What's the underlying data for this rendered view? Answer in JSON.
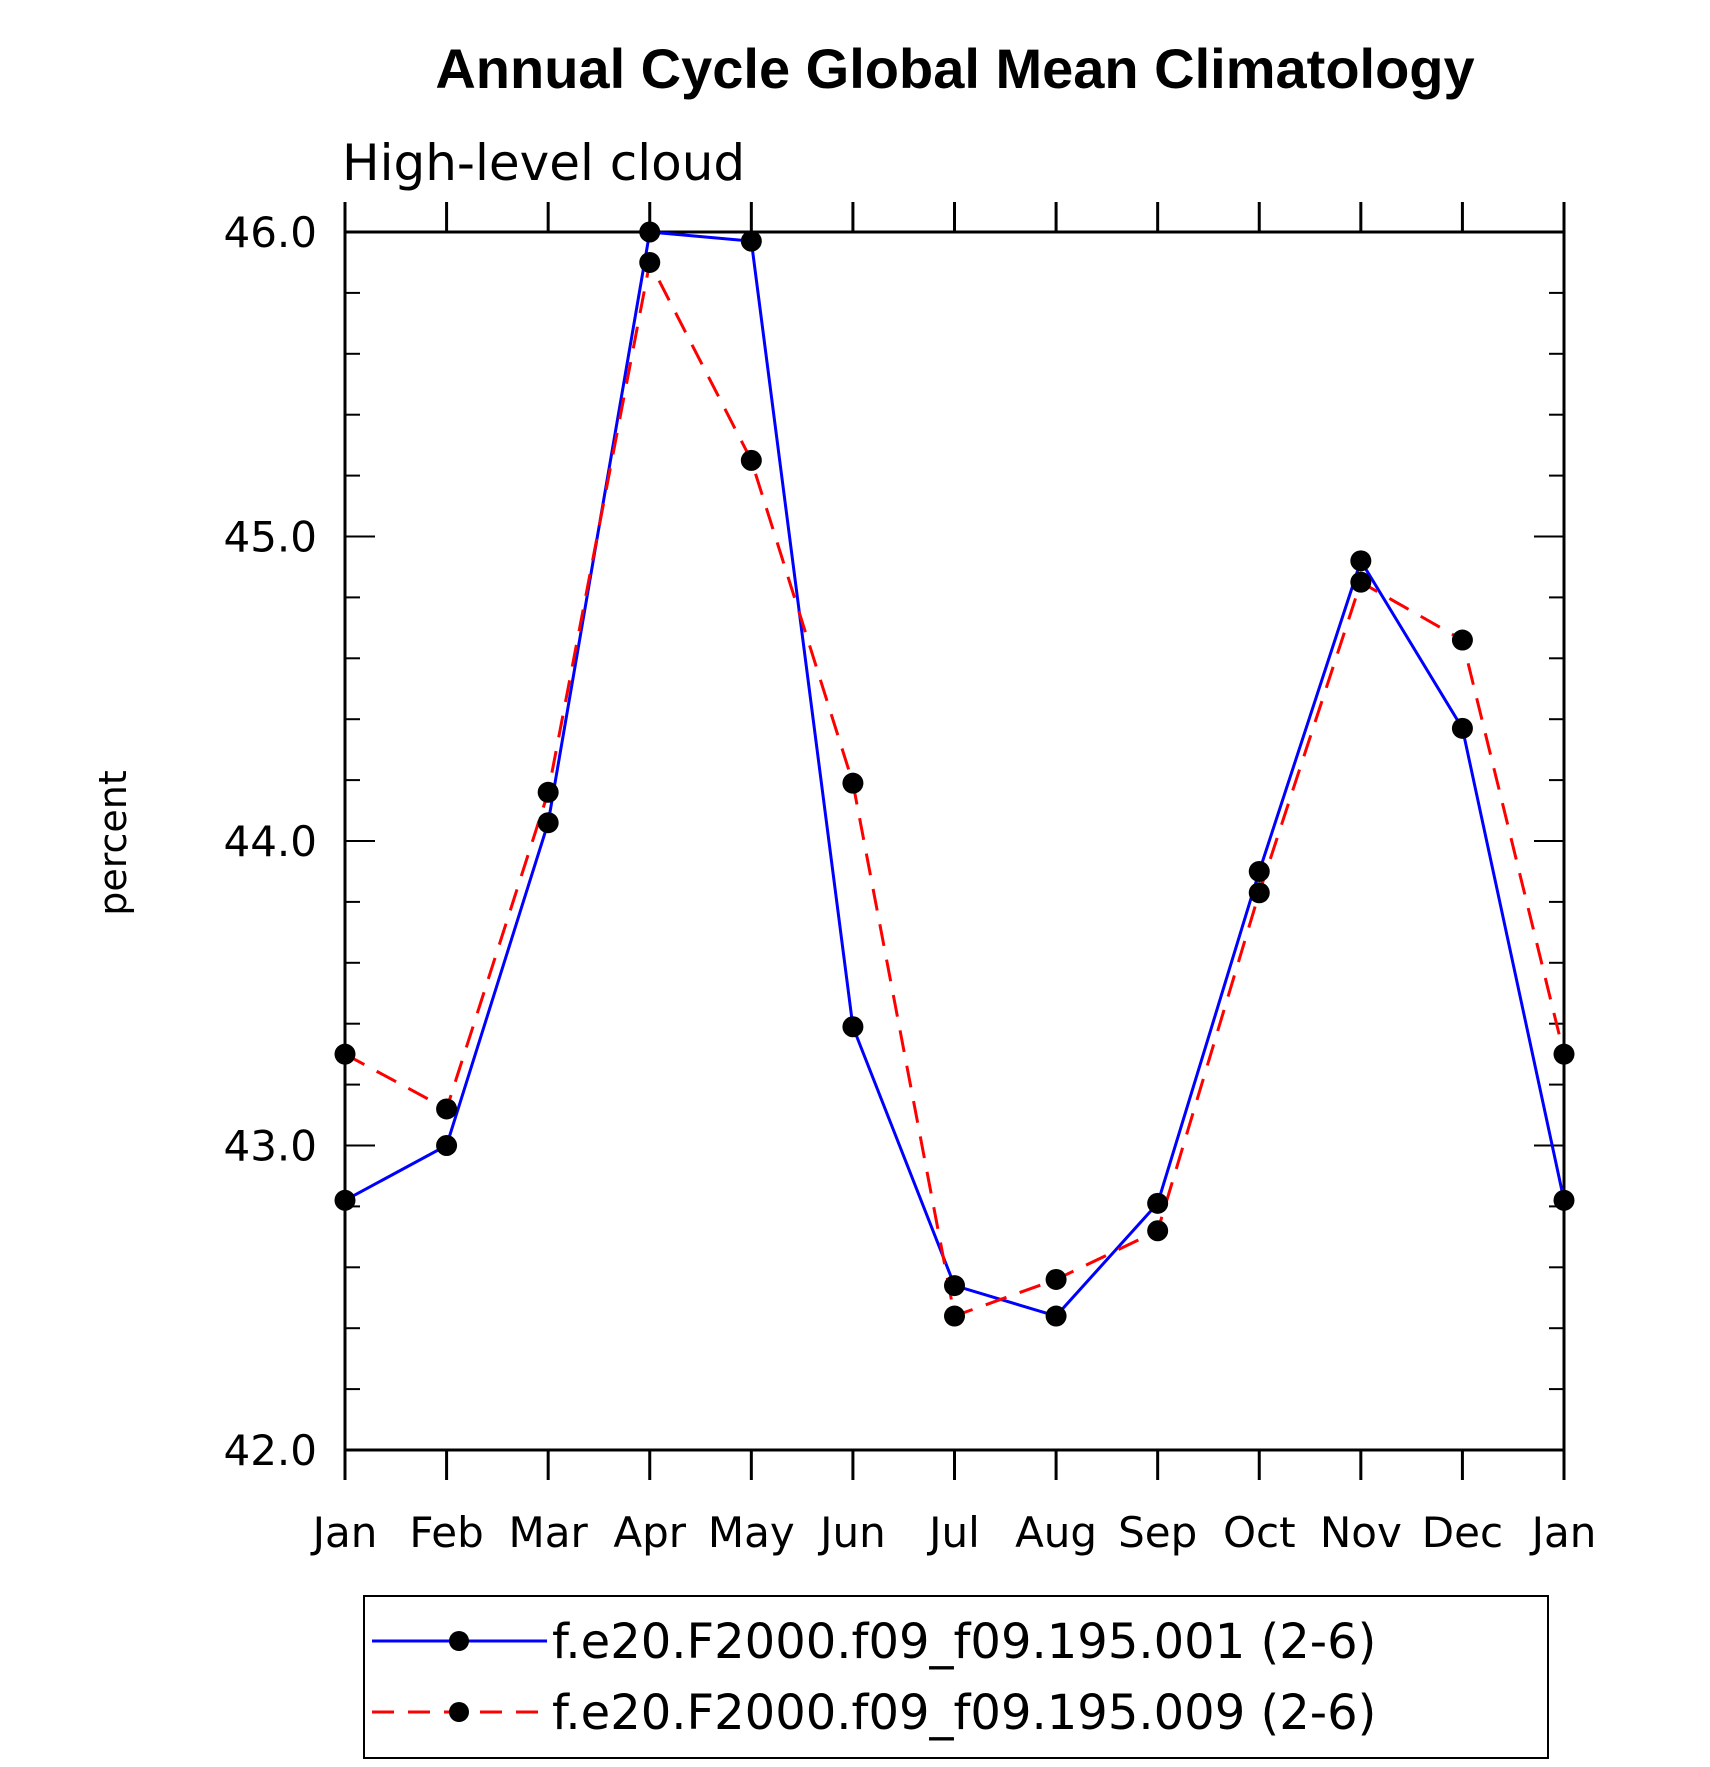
{
  "chart_data": {
    "type": "line",
    "title": "Annual Cycle Global Mean Climatology",
    "subtitle": "High-level cloud",
    "ylabel": "percent",
    "xlabel": "",
    "categories": [
      "Jan",
      "Feb",
      "Mar",
      "Apr",
      "May",
      "Jun",
      "Jul",
      "Aug",
      "Sep",
      "Oct",
      "Nov",
      "Dec",
      "Jan"
    ],
    "ylim": [
      42.0,
      46.0
    ],
    "yticks": [
      "42.0",
      "43.0",
      "44.0",
      "45.0",
      "46.0"
    ],
    "grid": false,
    "legend_position": "bottom",
    "series": [
      {
        "name": "f.e20.F2000.f09_f09.195.001 (2-6)",
        "color": "#0000ff",
        "dash": "solid",
        "marker": "filled-circle",
        "values": [
          42.82,
          43.0,
          44.06,
          46.0,
          45.97,
          43.39,
          42.54,
          42.44,
          42.81,
          43.9,
          44.92,
          44.37,
          42.82
        ]
      },
      {
        "name": "f.e20.F2000.f09_f09.195.009 (2-6)",
        "color": "#ff0000",
        "dash": "dashed",
        "marker": "filled-circle",
        "values": [
          43.3,
          43.12,
          44.16,
          45.9,
          45.25,
          44.19,
          42.44,
          42.56,
          42.72,
          43.83,
          44.85,
          44.66,
          43.3
        ]
      }
    ]
  }
}
